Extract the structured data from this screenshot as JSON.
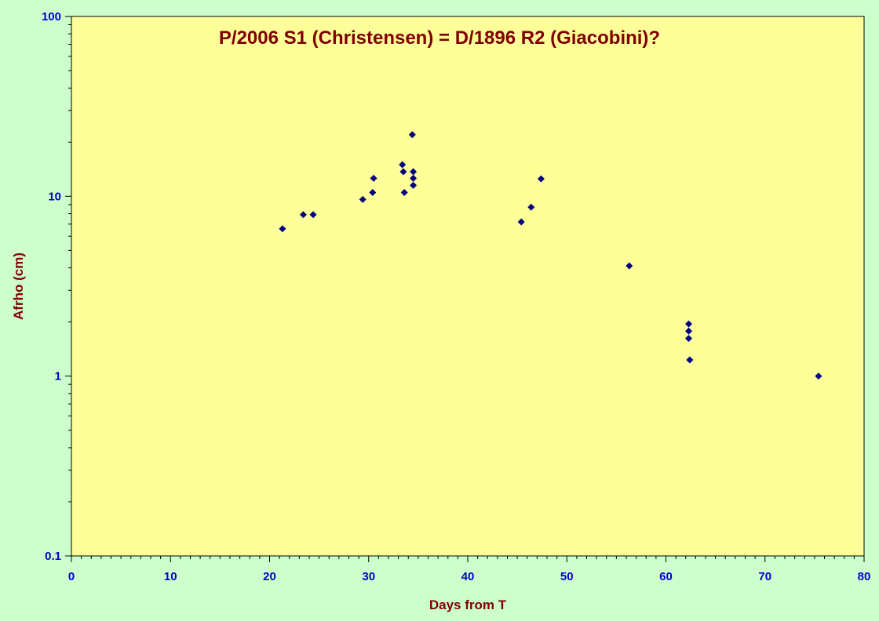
{
  "chart_data": {
    "type": "scatter",
    "title": "P/2006 S1 (Christensen) = D/1896 R2 (Giacobini)?",
    "xlabel": "Days from T",
    "ylabel": "Afrho (cm)",
    "xlim": [
      0,
      80
    ],
    "ylim": [
      0.1,
      100
    ],
    "yscale": "log",
    "x_ticks": [
      0,
      10,
      20,
      30,
      40,
      50,
      60,
      70,
      80
    ],
    "x_tick_labels": [
      "0",
      "10",
      "20",
      "30",
      "40",
      "50",
      "60",
      "70",
      "80"
    ],
    "y_ticks": [
      0.1,
      1,
      10,
      100
    ],
    "y_tick_labels": [
      "0.1",
      "1",
      "10",
      "100"
    ],
    "grid": false,
    "legend": "none",
    "colors": {
      "page_background": "#ccffcc",
      "plot_background": "#ffff99",
      "marker": "#000080",
      "title": "#800000",
      "tick_labels": "#0000cc"
    },
    "series": [
      {
        "marker": "diamond",
        "points": [
          {
            "x": 21.3,
            "y": 6.6
          },
          {
            "x": 23.4,
            "y": 7.9
          },
          {
            "x": 24.4,
            "y": 7.9
          },
          {
            "x": 29.4,
            "y": 9.6
          },
          {
            "x": 30.4,
            "y": 10.5
          },
          {
            "x": 30.5,
            "y": 12.6
          },
          {
            "x": 33.4,
            "y": 15.0
          },
          {
            "x": 33.5,
            "y": 13.7
          },
          {
            "x": 33.6,
            "y": 10.5
          },
          {
            "x": 34.4,
            "y": 22.0
          },
          {
            "x": 34.5,
            "y": 13.7
          },
          {
            "x": 34.5,
            "y": 12.6
          },
          {
            "x": 34.5,
            "y": 11.5
          },
          {
            "x": 45.4,
            "y": 7.2
          },
          {
            "x": 46.4,
            "y": 8.7
          },
          {
            "x": 47.4,
            "y": 12.5
          },
          {
            "x": 56.3,
            "y": 4.1
          },
          {
            "x": 62.3,
            "y": 1.95
          },
          {
            "x": 62.3,
            "y": 1.78
          },
          {
            "x": 62.3,
            "y": 1.62
          },
          {
            "x": 62.4,
            "y": 1.23
          },
          {
            "x": 75.4,
            "y": 1.0
          }
        ]
      }
    ]
  }
}
